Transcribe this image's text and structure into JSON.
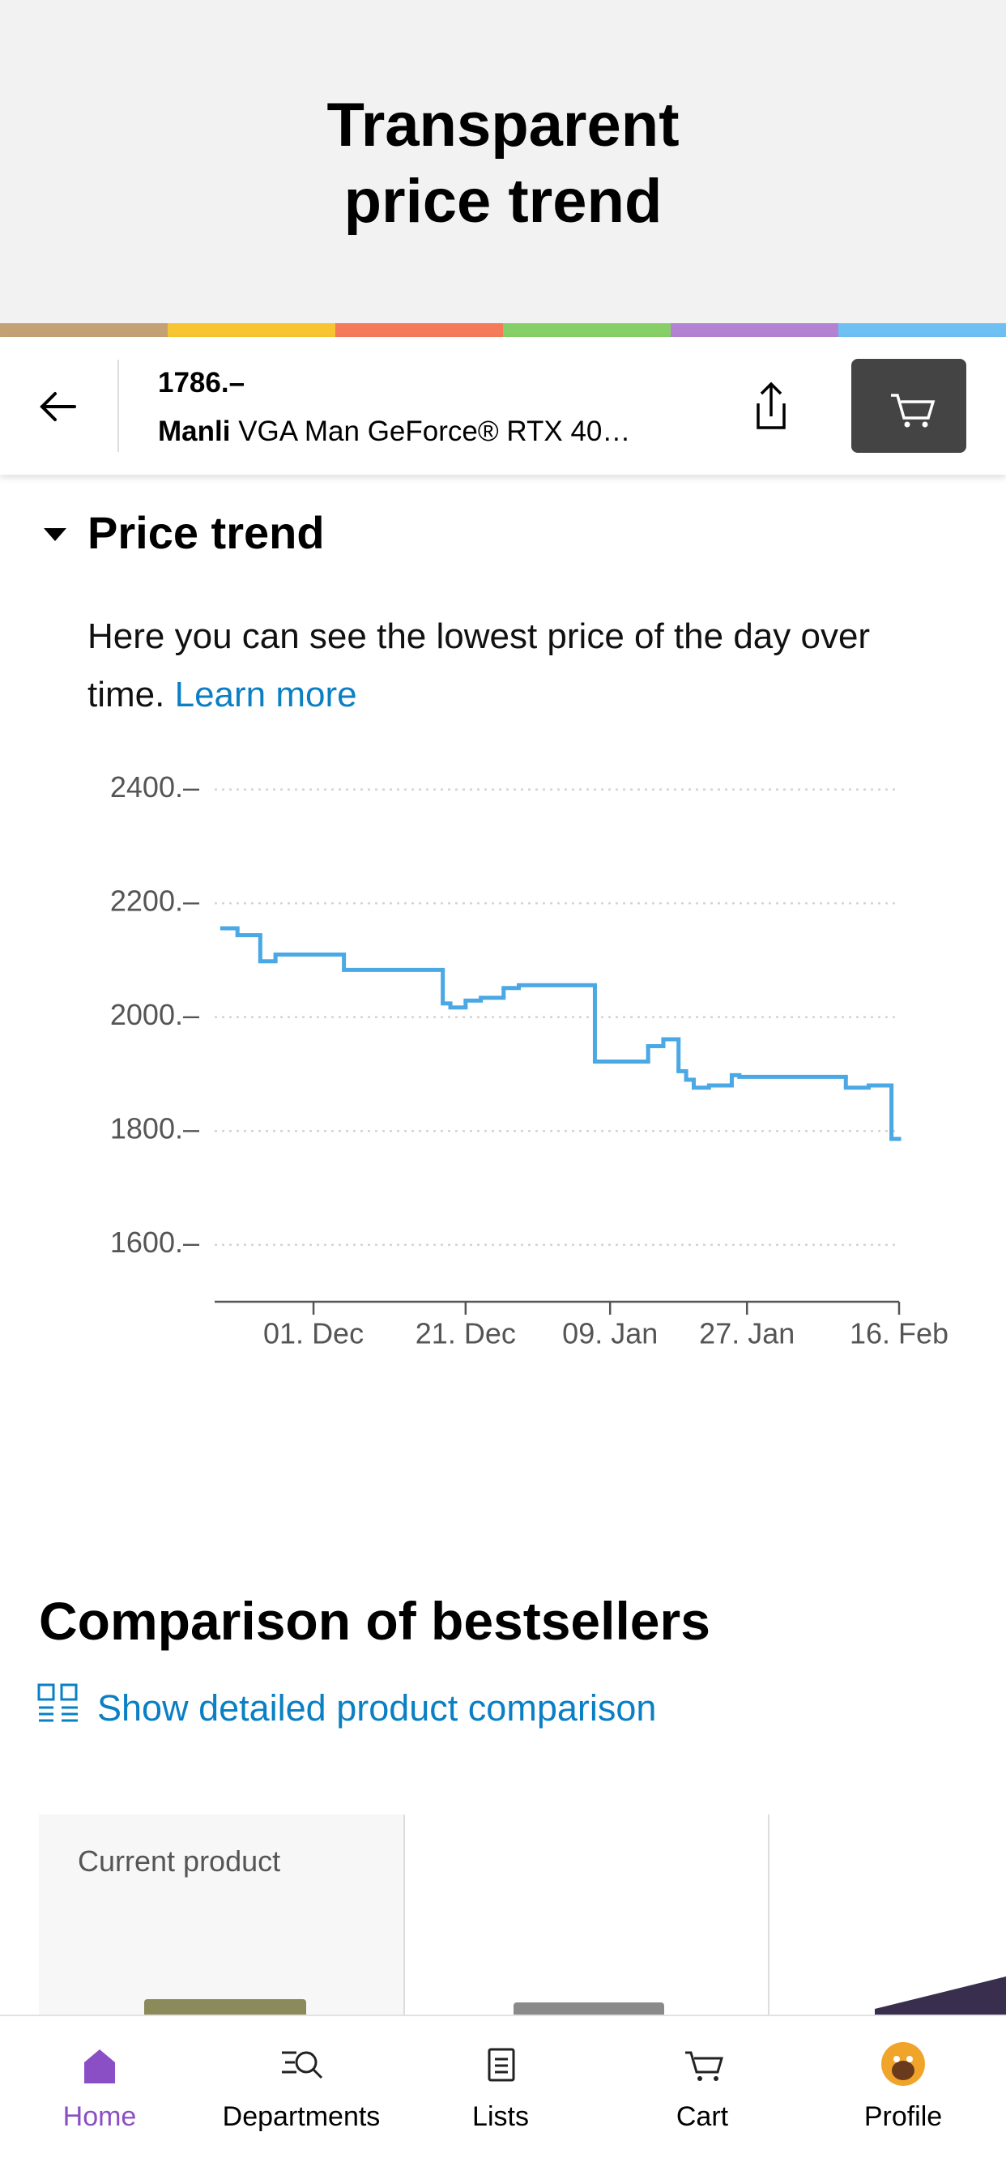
{
  "header": {
    "title": "Transparent price trend"
  },
  "product_bar": {
    "price": "1786.–",
    "brand": "Manli",
    "name": "VGA Man GeForce® RTX 40…"
  },
  "section": {
    "heading": "Price trend",
    "description": "Here you can see the lowest price of the day over time.",
    "link": "Learn more"
  },
  "chart_data": {
    "type": "line",
    "step": "post",
    "color": "#4aa8e4",
    "x": [
      -12,
      -10,
      -7,
      -5,
      4,
      17,
      18,
      20,
      22,
      25,
      27,
      37,
      44,
      46,
      48,
      49,
      50,
      52,
      55,
      56,
      70,
      73,
      76
    ],
    "values": [
      2156,
      2144,
      2098,
      2110,
      2083,
      2024,
      2017,
      2029,
      2034,
      2051,
      2056,
      1922,
      1949,
      1961,
      1905,
      1890,
      1876,
      1880,
      1898,
      1895,
      1876,
      1880,
      1786
    ],
    "xlim": [
      -13,
      77
    ],
    "ylim": [
      1500,
      2425
    ],
    "xticks": [
      {
        "value": 0,
        "label": "01. Dec"
      },
      {
        "value": 20,
        "label": "21. Dec"
      },
      {
        "value": 39,
        "label": "09. Jan"
      },
      {
        "value": 57,
        "label": "27. Jan"
      },
      {
        "value": 77,
        "label": "16. Feb"
      }
    ],
    "yticks": [
      {
        "value": 1600,
        "label": "1600.–"
      },
      {
        "value": 1800,
        "label": "1800.–"
      },
      {
        "value": 2000,
        "label": "2000.–"
      },
      {
        "value": 2200,
        "label": "2200.–"
      },
      {
        "value": 2400,
        "label": "2400.–"
      }
    ],
    "grid": true
  },
  "comparison": {
    "title": "Comparison of bestsellers",
    "link": "Show detailed product comparison",
    "card_label": "Current product"
  },
  "nav": [
    {
      "label": "Home"
    },
    {
      "label": "Departments"
    },
    {
      "label": "Lists"
    },
    {
      "label": "Cart"
    },
    {
      "label": "Profile"
    }
  ]
}
